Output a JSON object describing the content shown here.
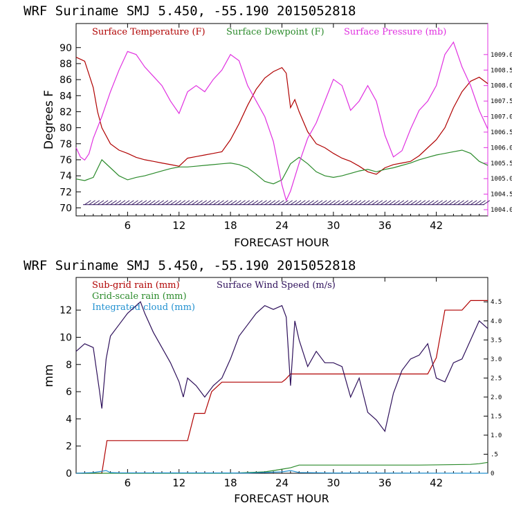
{
  "chart_data": [
    {
      "type": "line",
      "title": "WRF   Suriname SMJ   5.450, -55.190  2015052818",
      "xlabel": "FORECAST HOUR",
      "ylabel": "Degrees F",
      "xlim": [
        0,
        48
      ],
      "ylim": [
        69,
        93
      ],
      "y2lim": [
        1003.8,
        1010.0
      ],
      "x_ticks": [
        6,
        12,
        18,
        24,
        30,
        36,
        42
      ],
      "y_ticks": [
        70,
        72,
        74,
        76,
        78,
        80,
        82,
        84,
        86,
        88,
        90
      ],
      "y2_ticks": [
        "1004.0",
        "1004.5",
        "1005.0",
        "1005.5",
        "1006.0",
        "1006.5",
        "1007.0",
        "1007.5",
        "1008.0",
        "1008.5",
        "1009.0"
      ],
      "legend": [
        "Surface Temperature (F)",
        "Surface Dewpoint (F)",
        "Surface Pressure (mb)"
      ],
      "wind_barbs_label": "",
      "series": [
        {
          "name": "Surface Temperature (F)",
          "color": "#b00000",
          "axis": "left",
          "x": [
            0,
            1,
            2,
            2.5,
            3,
            4,
            5,
            6,
            7,
            8,
            9,
            10,
            11,
            12,
            13,
            14,
            15,
            16,
            17,
            18,
            19,
            20,
            21,
            22,
            23,
            24,
            24.5,
            25,
            25.5,
            26,
            27,
            28,
            29,
            30,
            31,
            32,
            33,
            34,
            35,
            36,
            37,
            38,
            39,
            40,
            41,
            42,
            43,
            44,
            45,
            46,
            47,
            48
          ],
          "values": [
            88.8,
            88.3,
            85.0,
            82.0,
            80.0,
            78.0,
            77.2,
            76.8,
            76.3,
            76.0,
            75.8,
            75.6,
            75.4,
            75.2,
            76.2,
            76.4,
            76.6,
            76.8,
            77.0,
            78.5,
            80.5,
            82.8,
            84.8,
            86.2,
            87.0,
            87.5,
            86.8,
            82.5,
            83.5,
            82.0,
            79.5,
            78.0,
            77.5,
            76.8,
            76.2,
            75.8,
            75.2,
            74.5,
            74.2,
            75.0,
            75.4,
            75.6,
            75.8,
            76.5,
            77.5,
            78.5,
            80.0,
            82.5,
            84.5,
            85.8,
            86.3,
            85.5
          ]
        },
        {
          "name": "Surface Dewpoint (F)",
          "color": "#2a8a2a",
          "axis": "left",
          "x": [
            0,
            1,
            2,
            3,
            4,
            5,
            6,
            7,
            8,
            9,
            10,
            11,
            12,
            13,
            14,
            15,
            16,
            17,
            18,
            19,
            20,
            21,
            22,
            23,
            24,
            25,
            26,
            27,
            28,
            29,
            30,
            31,
            32,
            33,
            34,
            35,
            36,
            37,
            38,
            39,
            40,
            41,
            42,
            43,
            44,
            45,
            46,
            47,
            48
          ],
          "values": [
            73.6,
            73.4,
            73.8,
            76.0,
            75.0,
            74.0,
            73.5,
            73.8,
            74.0,
            74.3,
            74.6,
            74.9,
            75.1,
            75.1,
            75.2,
            75.3,
            75.4,
            75.5,
            75.6,
            75.4,
            75.0,
            74.2,
            73.3,
            73.0,
            73.5,
            75.5,
            76.3,
            75.5,
            74.5,
            74.0,
            73.8,
            74.0,
            74.3,
            74.6,
            74.8,
            74.5,
            74.8,
            75.0,
            75.3,
            75.6,
            76.0,
            76.3,
            76.6,
            76.8,
            77.0,
            77.2,
            76.8,
            75.8,
            75.3
          ]
        },
        {
          "name": "Surface Pressure (mb)",
          "color": "#e030e0",
          "axis": "right",
          "x": [
            0,
            0.5,
            1,
            1.5,
            2,
            3,
            4,
            5,
            6,
            7,
            8,
            9,
            10,
            11,
            12,
            13,
            14,
            15,
            16,
            17,
            18,
            19,
            20,
            21,
            22,
            23,
            24,
            24.5,
            25,
            26,
            27,
            28,
            29,
            30,
            31,
            32,
            33,
            34,
            35,
            36,
            37,
            38,
            39,
            40,
            41,
            42,
            43,
            44,
            45,
            46,
            47,
            48
          ],
          "values": [
            1006.0,
            1005.7,
            1005.6,
            1005.8,
            1006.3,
            1007.0,
            1007.8,
            1008.5,
            1009.1,
            1009.0,
            1008.6,
            1008.3,
            1008.0,
            1007.5,
            1007.1,
            1007.8,
            1008.0,
            1007.8,
            1008.2,
            1008.5,
            1009.0,
            1008.8,
            1008.0,
            1007.5,
            1007.0,
            1006.2,
            1004.8,
            1004.3,
            1004.6,
            1005.5,
            1006.3,
            1006.8,
            1007.5,
            1008.2,
            1008.0,
            1007.2,
            1007.5,
            1008.0,
            1007.5,
            1006.4,
            1005.7,
            1005.9,
            1006.6,
            1007.2,
            1007.5,
            1008.0,
            1009.0,
            1009.4,
            1008.6,
            1008.0,
            1007.2,
            1006.6
          ]
        }
      ]
    },
    {
      "type": "line",
      "title": "WRF   Suriname SMJ   5.450, -55.190  2015052818",
      "xlabel": "FORECAST HOUR",
      "ylabel": "mm",
      "xlim": [
        0,
        48
      ],
      "ylim": [
        0,
        14.4
      ],
      "y2lim": [
        0,
        5.14
      ],
      "x_ticks": [
        6,
        12,
        18,
        24,
        30,
        36,
        42
      ],
      "y_ticks": [
        0,
        2,
        4,
        6,
        8,
        10,
        12
      ],
      "y2_ticks": [
        "0",
        ".5",
        "1.0",
        "1.5",
        "2.0",
        "2.5",
        "3.0",
        "3.5",
        "4.0",
        "4.5"
      ],
      "legend": [
        "Sub-grid rain (mm)",
        "Grid-scale rain (mm)",
        "Integrated cloud (mm)",
        "Surface Wind Speed (m/s)"
      ],
      "series": [
        {
          "name": "Sub-grid rain (mm)",
          "color": "#b00000",
          "axis": "left",
          "x": [
            0,
            3,
            3.6,
            12,
            13,
            13.8,
            15,
            15.8,
            17,
            19,
            24,
            24.4,
            25,
            38,
            41,
            42,
            43,
            44,
            45,
            46,
            47,
            48
          ],
          "values": [
            0,
            0,
            2.4,
            2.4,
            2.4,
            4.4,
            4.4,
            6.0,
            6.7,
            6.7,
            6.7,
            6.9,
            7.3,
            7.3,
            7.3,
            8.5,
            12.0,
            12.0,
            12.0,
            12.7,
            12.7,
            12.7
          ]
        },
        {
          "name": "Grid-scale rain (mm)",
          "color": "#2a8a2a",
          "axis": "left",
          "x": [
            0,
            18,
            22,
            23,
            24,
            25,
            26,
            30,
            40,
            46,
            47,
            48
          ],
          "values": [
            0,
            0,
            0.1,
            0.2,
            0.3,
            0.4,
            0.6,
            0.6,
            0.6,
            0.65,
            0.7,
            0.8
          ]
        },
        {
          "name": "Integrated cloud (mm)",
          "color": "#2090d0",
          "axis": "left",
          "x": [
            0,
            2,
            3.5,
            4,
            5,
            20,
            24,
            25,
            26,
            30,
            48
          ],
          "values": [
            0,
            0.05,
            0.2,
            0.05,
            0.03,
            0.02,
            0.1,
            0.2,
            0.05,
            0.02,
            0.0
          ]
        },
        {
          "name": "Surface Wind Speed (m/s)",
          "color": "#2d0f5a",
          "axis": "right",
          "x": [
            0,
            1,
            2,
            2.7,
            3,
            3.5,
            4,
            5,
            6,
            7,
            7.5,
            8,
            9,
            10,
            11,
            12,
            12.5,
            13,
            14,
            15,
            16,
            17,
            18,
            19,
            20,
            21,
            22,
            23,
            24,
            24.5,
            25,
            25.5,
            26,
            27,
            28,
            29,
            30,
            31,
            32,
            33,
            34,
            35,
            36,
            37,
            38,
            39,
            40,
            41,
            42,
            43,
            44,
            45,
            46,
            47,
            48
          ],
          "values": [
            3.2,
            3.4,
            3.3,
            2.2,
            1.7,
            3.0,
            3.6,
            3.9,
            4.2,
            4.4,
            4.5,
            4.2,
            3.7,
            3.3,
            2.9,
            2.4,
            2.0,
            2.5,
            2.3,
            2.0,
            2.3,
            2.5,
            3.0,
            3.6,
            3.9,
            4.2,
            4.4,
            4.3,
            4.4,
            4.1,
            2.3,
            4.0,
            3.5,
            2.8,
            3.2,
            2.9,
            2.9,
            2.8,
            2.0,
            2.5,
            1.6,
            1.4,
            1.1,
            2.1,
            2.7,
            3.0,
            3.1,
            3.4,
            2.5,
            2.4,
            2.9,
            3.0,
            3.5,
            4.0,
            3.8
          ]
        }
      ]
    }
  ]
}
